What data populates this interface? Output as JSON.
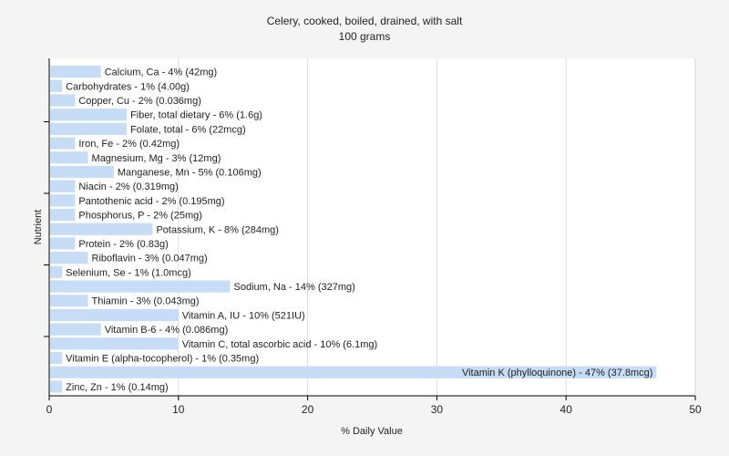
{
  "chart_data": {
    "type": "bar",
    "orientation": "horizontal",
    "title": "Celery, cooked, boiled, drained, with salt",
    "subtitle": "100 grams",
    "xlabel": "% Daily Value",
    "ylabel": "Nutrient",
    "xlim": [
      0,
      50
    ],
    "xticks": [
      0,
      10,
      20,
      30,
      40,
      50
    ],
    "grid": true,
    "bar_color": "#c7dcf5",
    "categories": [
      "Calcium, Ca",
      "Carbohydrates",
      "Copper, Cu",
      "Fiber, total dietary",
      "Folate, total",
      "Iron, Fe",
      "Magnesium, Mg",
      "Manganese, Mn",
      "Niacin",
      "Pantothenic acid",
      "Phosphorus, P",
      "Potassium, K",
      "Protein",
      "Riboflavin",
      "Selenium, Se",
      "Sodium, Na",
      "Thiamin",
      "Vitamin A, IU",
      "Vitamin B-6",
      "Vitamin C, total ascorbic acid",
      "Vitamin E (alpha-tocopherol)",
      "Vitamin K (phylloquinone)",
      "Zinc, Zn"
    ],
    "values": [
      4,
      1,
      2,
      6,
      6,
      2,
      3,
      5,
      2,
      2,
      2,
      8,
      2,
      3,
      1,
      14,
      3,
      10,
      4,
      10,
      1,
      47,
      1
    ],
    "labels": [
      "Calcium, Ca - 4% (42mg)",
      "Carbohydrates - 1% (4.00g)",
      "Copper, Cu - 2% (0.036mg)",
      "Fiber, total dietary - 6% (1.6g)",
      "Folate, total - 6% (22mcg)",
      "Iron, Fe - 2% (0.42mg)",
      "Magnesium, Mg - 3% (12mg)",
      "Manganese, Mn - 5% (0.106mg)",
      "Niacin - 2% (0.319mg)",
      "Pantothenic acid - 2% (0.195mg)",
      "Phosphorus, P - 2% (25mg)",
      "Potassium, K - 8% (284mg)",
      "Protein - 2% (0.83g)",
      "Riboflavin - 3% (0.047mg)",
      "Selenium, Se - 1% (1.0mcg)",
      "Sodium, Na - 14% (327mg)",
      "Thiamin - 3% (0.043mg)",
      "Vitamin A, IU - 10% (521IU)",
      "Vitamin B-6 - 4% (0.086mg)",
      "Vitamin C, total ascorbic acid - 10% (6.1mg)",
      "Vitamin E (alpha-tocopherol) - 1% (0.35mg)",
      "Vitamin K (phylloquinone) - 47% (37.8mcg)",
      "Zinc, Zn - 1% (0.14mg)"
    ]
  }
}
